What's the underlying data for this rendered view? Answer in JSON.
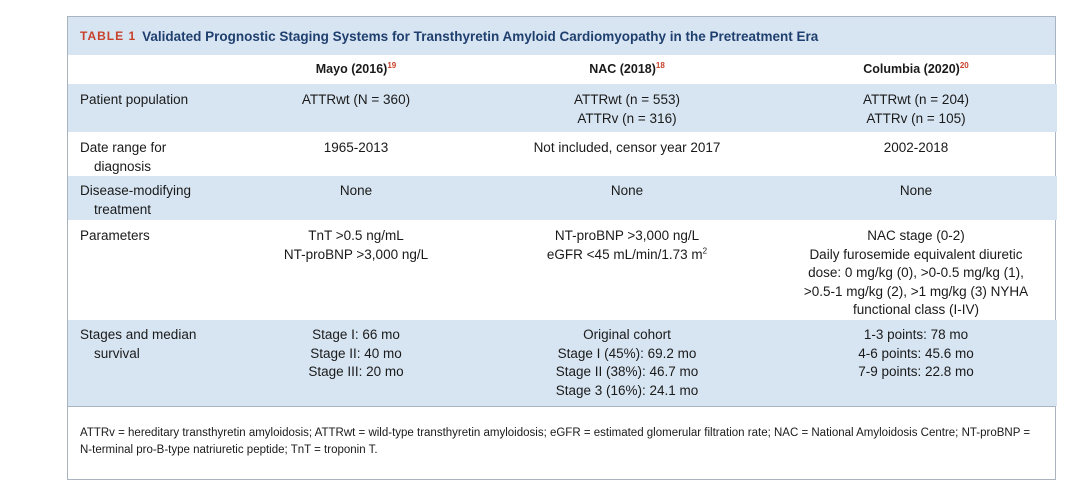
{
  "caption": {
    "label": "TABLE 1",
    "title": "Validated Prognostic Staging Systems for Transthyretin Amyloid Cardiomyopathy in the Pretreatment Era"
  },
  "columns": [
    {
      "name": "Mayo (2016)",
      "ref": "19"
    },
    {
      "name": "NAC (2018)",
      "ref": "18"
    },
    {
      "name": "Columbia (2020)",
      "ref": "20"
    }
  ],
  "rows": [
    {
      "label": [
        "Patient population"
      ],
      "cells": [
        [
          "ATTRwt (N = 360)"
        ],
        [
          "ATTRwt (n = 553)",
          "ATTRv (n = 316)"
        ],
        [
          "ATTRwt (n = 204)",
          "ATTRv (n = 105)"
        ]
      ]
    },
    {
      "label": [
        "Date range for",
        "diagnosis"
      ],
      "cells": [
        [
          "1965-2013"
        ],
        [
          "Not included, censor year 2017"
        ],
        [
          "2002-2018"
        ]
      ]
    },
    {
      "label": [
        "Disease-modifying",
        "treatment"
      ],
      "cells": [
        [
          "None"
        ],
        [
          "None"
        ],
        [
          "None"
        ]
      ]
    },
    {
      "label": [
        "Parameters"
      ],
      "cells": [
        [
          "TnT >0.5 ng/mL",
          "NT-proBNP >3,000 ng/L"
        ],
        [
          "NT-proBNP >3,000 ng/L",
          "eGFR <45 mL/min/1.73 m"
        ],
        [
          "NAC stage (0-2)",
          "Daily furosemide equivalent diuretic",
          "dose: 0 mg/kg (0), >0-0.5 mg/kg (1),",
          ">0.5-1 mg/kg (2), >1 mg/kg (3) NYHA",
          "functional class (I-IV)"
        ]
      ],
      "superscript": "2"
    },
    {
      "label": [
        "Stages and median",
        "survival"
      ],
      "cells": [
        [
          "Stage I: 66 mo",
          "Stage II: 40 mo",
          "Stage III: 20 mo"
        ],
        [
          "Original cohort",
          "Stage I (45%): 69.2 mo",
          "Stage II (38%): 46.7 mo",
          "Stage 3 (16%): 24.1 mo"
        ],
        [
          "1-3 points: 78 mo",
          "4-6 points: 45.6 mo",
          "7-9 points: 22.8 mo"
        ]
      ]
    }
  ],
  "footnote": "ATTRv = hereditary transthyretin amyloidosis; ATTRwt = wild-type transthyretin amyloidosis; eGFR = estimated glomerular filtration rate; NAC = National Amyloidosis Centre; NT-proBNP = N-terminal pro-B-type natriuretic peptide; TnT = troponin T.",
  "colors": {
    "shade": "#d7e5f2",
    "title": "#1f3f6e",
    "label": "#c8412b",
    "border": "#a9b4bf"
  }
}
